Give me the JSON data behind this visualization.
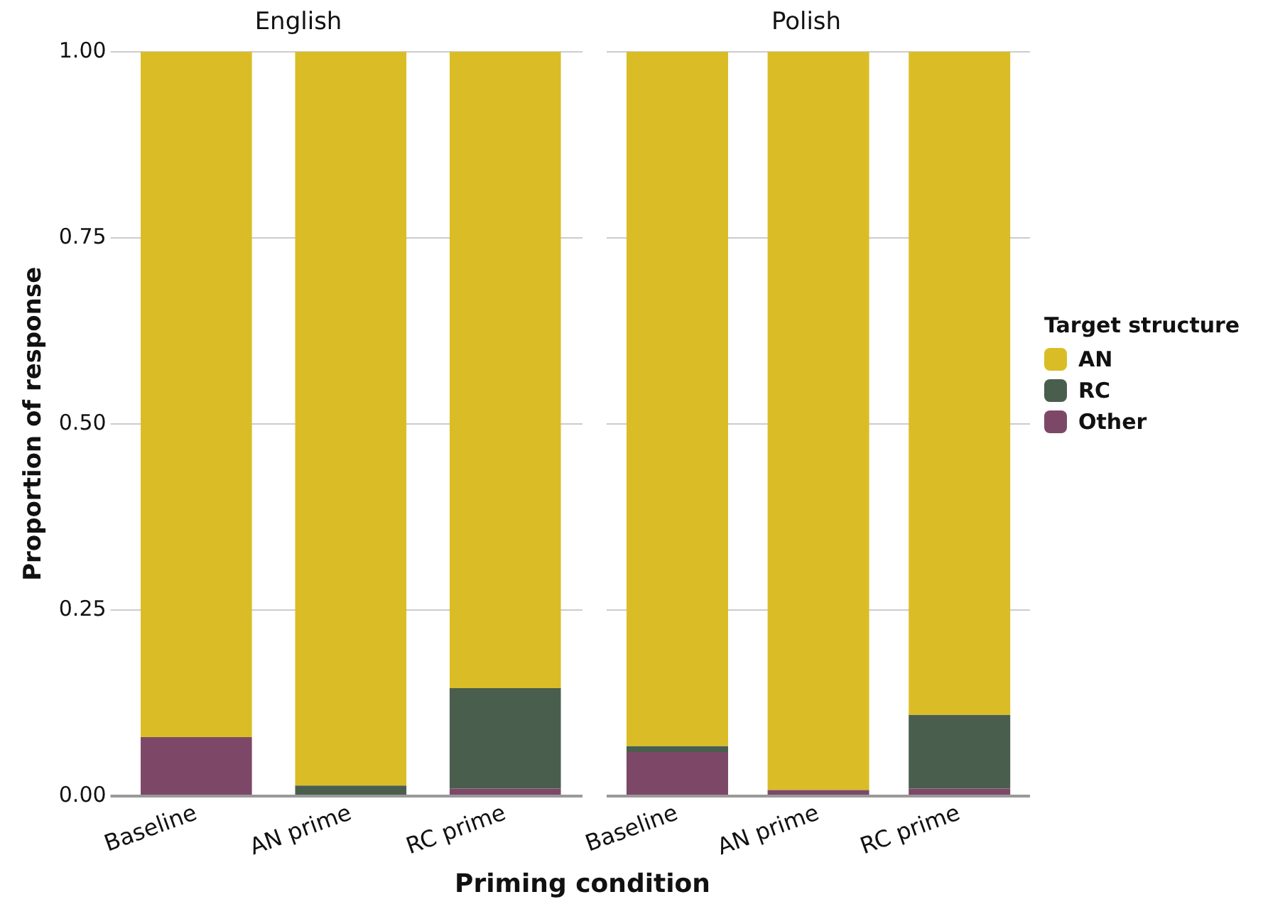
{
  "chart_data": [
    {
      "type": "bar",
      "title": "English",
      "xlabel": "Priming condition",
      "ylabel": "Proportion of response",
      "categories": [
        "Baseline",
        "AN prime",
        "RC prime"
      ],
      "stacked": true,
      "ylim": [
        0,
        1
      ],
      "yticks": [
        {
          "value": 0,
          "label": "0.00"
        },
        {
          "value": 0.25,
          "label": "0.25"
        },
        {
          "value": 0.5,
          "label": "0.50"
        },
        {
          "value": 0.75,
          "label": "0.75"
        },
        {
          "value": 1,
          "label": "1.00"
        }
      ],
      "grid": "y",
      "series": [
        {
          "color": "#7d4868",
          "values": [
            0.079,
            0,
            0.01
          ]
        },
        {
          "color": "#4a5e4e",
          "values": [
            0,
            0.014,
            0.135
          ]
        },
        {
          "color": "#dabd26",
          "values": [
            0.921,
            0.986,
            0.855
          ]
        }
      ]
    },
    {
      "type": "bar",
      "title": "Polish",
      "legend_title": "Target structure",
      "categories": [
        "Baseline",
        "AN prime",
        "RC prime"
      ],
      "stacked": true,
      "ylim": [
        0,
        1
      ],
      "yticks": [
        0,
        0.25,
        0.5,
        0.75,
        1
      ],
      "grid": "y",
      "legend": "right",
      "tick_labels": "x",
      "series": [
        {
          "name": "Other",
          "color": "#7d4868",
          "values": [
            0.059,
            0.008,
            0.01
          ]
        },
        {
          "name": "RC",
          "color": "#4a5e4e",
          "values": [
            0.008,
            0,
            0.099
          ]
        },
        {
          "name": "AN",
          "color": "#dabd26",
          "values": [
            0.933,
            0.992,
            0.891
          ]
        }
      ]
    }
  ]
}
